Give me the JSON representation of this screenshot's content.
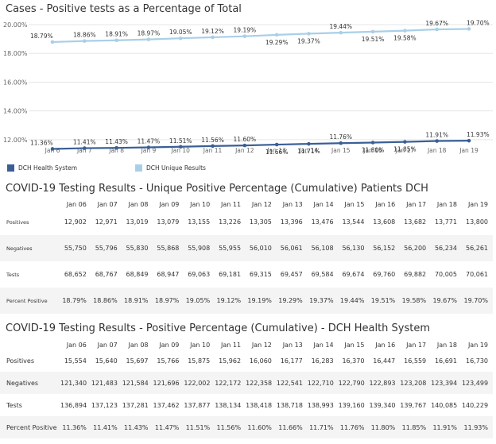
{
  "chart_title": "Cases - Positive tests as a Percentage of Total",
  "chart_data": {
    "type": "line",
    "categories": [
      "Jan 6",
      "Jan 7",
      "Jan 8",
      "Jan 9",
      "Jan 10",
      "Jan 11",
      "Jan 12",
      "Jan 13",
      "Jan 14",
      "Jan 15",
      "Jan 16",
      "Jan 17",
      "Jan 18",
      "Jan 19"
    ],
    "ylim": [
      11,
      20
    ],
    "yticks": [
      "12.00%",
      "14.00%",
      "16.00%",
      "18.00%",
      "20.00%"
    ],
    "ytick_values": [
      12,
      14,
      16,
      18,
      20
    ],
    "grid": true,
    "legend_position": "bottom-left",
    "series": [
      {
        "name": "DCH Health System",
        "color": "#3a5f96",
        "values": [
          11.36,
          11.41,
          11.43,
          11.47,
          11.51,
          11.56,
          11.6,
          11.66,
          11.71,
          11.76,
          11.8,
          11.85,
          11.91,
          11.93
        ],
        "labels": [
          "11.36%",
          "11.41%",
          "11.43%",
          "11.47%",
          "11.51%",
          "11.56%",
          "11.60%",
          "11.66%",
          "11.71%",
          "11.76%",
          "11.80%",
          "11.85%",
          "11.91%",
          "11.93%"
        ]
      },
      {
        "name": "DCH Unique Results",
        "color": "#a9cfe8",
        "values": [
          18.79,
          18.86,
          18.91,
          18.97,
          19.05,
          19.12,
          19.19,
          19.29,
          19.37,
          19.44,
          19.51,
          19.58,
          19.67,
          19.7
        ],
        "labels": [
          "18.79%",
          "18.86%",
          "18.91%",
          "18.97%",
          "19.05%",
          "19.12%",
          "19.19%",
          "19.29%",
          "19.37%",
          "19.44%",
          "19.51%",
          "19.58%",
          "19.67%",
          "19.70%"
        ]
      }
    ]
  },
  "table1": {
    "title": "COVID-19 Testing Results - Unique Positive Percentage (Cumulative) Patients DCH",
    "columns": [
      "Jan 06",
      "Jan 07",
      "Jan 08",
      "Jan 09",
      "Jan 10",
      "Jan 11",
      "Jan 12",
      "Jan 13",
      "Jan 14",
      "Jan 15",
      "Jan 16",
      "Jan 17",
      "Jan 18",
      "Jan 19"
    ],
    "rows": [
      {
        "label": "Positives",
        "values": [
          "12,902",
          "12,971",
          "13,019",
          "13,079",
          "13,155",
          "13,226",
          "13,305",
          "13,396",
          "13,476",
          "13,544",
          "13,608",
          "13,682",
          "13,771",
          "13,800"
        ]
      },
      {
        "label": "Negatives",
        "values": [
          "55,750",
          "55,796",
          "55,830",
          "55,868",
          "55,908",
          "55,955",
          "56,010",
          "56,061",
          "56,108",
          "56,130",
          "56,152",
          "56,200",
          "56,234",
          "56,261"
        ]
      },
      {
        "label": "Tests",
        "values": [
          "68,652",
          "68,767",
          "68,849",
          "68,947",
          "69,063",
          "69,181",
          "69,315",
          "69,457",
          "69,584",
          "69,674",
          "69,760",
          "69,882",
          "70,005",
          "70,061"
        ]
      },
      {
        "label": "Percent Positive",
        "values": [
          "18.79%",
          "18.86%",
          "18.91%",
          "18.97%",
          "19.05%",
          "19.12%",
          "19.19%",
          "19.29%",
          "19.37%",
          "19.44%",
          "19.51%",
          "19.58%",
          "19.67%",
          "19.70%"
        ]
      }
    ]
  },
  "table2": {
    "title": "COVID-19 Testing Results - Positive Percentage (Cumulative) - DCH Health System",
    "columns": [
      "Jan 06",
      "Jan 07",
      "Jan 08",
      "Jan 09",
      "Jan 10",
      "Jan 11",
      "Jan 12",
      "Jan 13",
      "Jan 14",
      "Jan 15",
      "Jan 16",
      "Jan 17",
      "Jan 18",
      "Jan 19"
    ],
    "rows": [
      {
        "label": "Positives",
        "values": [
          "15,554",
          "15,640",
          "15,697",
          "15,766",
          "15,875",
          "15,962",
          "16,060",
          "16,177",
          "16,283",
          "16,370",
          "16,447",
          "16,559",
          "16,691",
          "16,730"
        ]
      },
      {
        "label": "Negatives",
        "values": [
          "121,340",
          "121,483",
          "121,584",
          "121,696",
          "122,002",
          "122,172",
          "122,358",
          "122,541",
          "122,710",
          "122,790",
          "122,893",
          "123,208",
          "123,394",
          "123,499"
        ]
      },
      {
        "label": "Tests",
        "values": [
          "136,894",
          "137,123",
          "137,281",
          "137,462",
          "137,877",
          "138,134",
          "138,418",
          "138,718",
          "138,993",
          "139,160",
          "139,340",
          "139,767",
          "140,085",
          "140,229"
        ]
      },
      {
        "label": "Percent Positive",
        "values": [
          "11.36%",
          "11.41%",
          "11.43%",
          "11.47%",
          "11.51%",
          "11.56%",
          "11.60%",
          "11.66%",
          "11.71%",
          "11.76%",
          "11.80%",
          "11.85%",
          "11.91%",
          "11.93%"
        ]
      }
    ]
  }
}
